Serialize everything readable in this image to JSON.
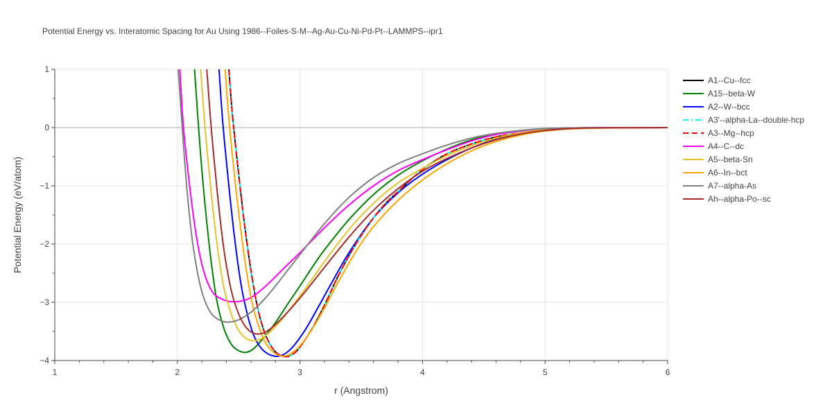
{
  "chart_data": {
    "type": "line",
    "title": "Potential Energy vs. Interatomic Spacing for Au Using 1986--Foiles-S-M--Ag-Au-Cu-Ni-Pd-Pt--LAMMPS--ipr1",
    "xlabel": "r (Angstrom)",
    "ylabel": "Potential Energy (eV/atom)",
    "xlim": [
      1,
      6
    ],
    "ylim": [
      -4,
      1
    ],
    "x_ticks": [
      "1",
      "2",
      "3",
      "4",
      "5",
      "6"
    ],
    "y_ticks": [
      "1",
      "0",
      "−1",
      "−2",
      "−3",
      "−4"
    ],
    "grid": true,
    "legend_position": "right",
    "series": [
      {
        "name": "A1--Cu--fcc",
        "color": "#000000",
        "dash": "solid",
        "points": [
          [
            2.4,
            1.6
          ],
          [
            2.42,
            1.0
          ],
          [
            2.45,
            0.2
          ],
          [
            2.5,
            -0.8
          ],
          [
            2.55,
            -1.7
          ],
          [
            2.6,
            -2.45
          ],
          [
            2.65,
            -3.05
          ],
          [
            2.7,
            -3.45
          ],
          [
            2.75,
            -3.7
          ],
          [
            2.8,
            -3.85
          ],
          [
            2.85,
            -3.92
          ],
          [
            2.9,
            -3.93
          ],
          [
            2.95,
            -3.88
          ],
          [
            3.0,
            -3.77
          ],
          [
            3.1,
            -3.45
          ],
          [
            3.2,
            -3.05
          ],
          [
            3.3,
            -2.6
          ],
          [
            3.4,
            -2.2
          ],
          [
            3.5,
            -1.85
          ],
          [
            3.6,
            -1.55
          ],
          [
            3.7,
            -1.3
          ],
          [
            3.8,
            -1.1
          ],
          [
            4.0,
            -0.72
          ],
          [
            4.2,
            -0.45
          ],
          [
            4.4,
            -0.28
          ],
          [
            4.6,
            -0.16
          ],
          [
            4.8,
            -0.09
          ],
          [
            5.0,
            -0.05
          ],
          [
            5.2,
            -0.02
          ],
          [
            5.5,
            -0.005
          ],
          [
            6.0,
            0
          ]
        ]
      },
      {
        "name": "A15--beta-W",
        "color": "#008000",
        "dash": "solid",
        "points": [
          [
            2.12,
            1.6
          ],
          [
            2.14,
            1.0
          ],
          [
            2.18,
            -0.2
          ],
          [
            2.22,
            -1.2
          ],
          [
            2.27,
            -2.2
          ],
          [
            2.32,
            -2.95
          ],
          [
            2.38,
            -3.45
          ],
          [
            2.44,
            -3.72
          ],
          [
            2.5,
            -3.83
          ],
          [
            2.56,
            -3.86
          ],
          [
            2.62,
            -3.8
          ],
          [
            2.7,
            -3.62
          ],
          [
            2.8,
            -3.35
          ],
          [
            2.9,
            -3.03
          ],
          [
            3.0,
            -2.72
          ],
          [
            3.1,
            -2.4
          ],
          [
            3.2,
            -2.1
          ],
          [
            3.4,
            -1.58
          ],
          [
            3.6,
            -1.15
          ],
          [
            3.8,
            -0.82
          ],
          [
            4.0,
            -0.57
          ],
          [
            4.2,
            -0.37
          ],
          [
            4.4,
            -0.21
          ],
          [
            4.6,
            -0.11
          ],
          [
            4.8,
            -0.05
          ],
          [
            5.0,
            -0.02
          ],
          [
            5.3,
            -0.005
          ],
          [
            6.0,
            0
          ]
        ]
      },
      {
        "name": "A2--W--bcc",
        "color": "#0000ff",
        "dash": "solid",
        "points": [
          [
            2.32,
            1.6
          ],
          [
            2.34,
            1.0
          ],
          [
            2.37,
            0.1
          ],
          [
            2.42,
            -1.0
          ],
          [
            2.47,
            -1.95
          ],
          [
            2.52,
            -2.7
          ],
          [
            2.57,
            -3.2
          ],
          [
            2.62,
            -3.55
          ],
          [
            2.67,
            -3.75
          ],
          [
            2.72,
            -3.86
          ],
          [
            2.78,
            -3.92
          ],
          [
            2.84,
            -3.92
          ],
          [
            2.9,
            -3.85
          ],
          [
            2.96,
            -3.72
          ],
          [
            3.05,
            -3.45
          ],
          [
            3.15,
            -3.08
          ],
          [
            3.25,
            -2.7
          ],
          [
            3.4,
            -2.15
          ],
          [
            3.6,
            -1.55
          ],
          [
            3.8,
            -1.12
          ],
          [
            4.0,
            -0.8
          ],
          [
            4.2,
            -0.55
          ],
          [
            4.4,
            -0.35
          ],
          [
            4.6,
            -0.2
          ],
          [
            4.8,
            -0.1
          ],
          [
            5.0,
            -0.05
          ],
          [
            5.3,
            -0.01
          ],
          [
            6.0,
            0
          ]
        ]
      },
      {
        "name": "A3'--alpha-La--double-hcp",
        "color": "#00ffff",
        "dash": "dashdot",
        "points": [
          [
            2.4,
            1.6
          ],
          [
            2.42,
            1.0
          ],
          [
            2.45,
            0.2
          ],
          [
            2.5,
            -0.8
          ],
          [
            2.55,
            -1.7
          ],
          [
            2.6,
            -2.45
          ],
          [
            2.65,
            -3.05
          ],
          [
            2.7,
            -3.45
          ],
          [
            2.75,
            -3.7
          ],
          [
            2.8,
            -3.85
          ],
          [
            2.85,
            -3.92
          ],
          [
            2.9,
            -3.93
          ],
          [
            2.95,
            -3.88
          ],
          [
            3.0,
            -3.77
          ],
          [
            3.1,
            -3.45
          ],
          [
            3.2,
            -3.05
          ],
          [
            3.3,
            -2.6
          ],
          [
            3.4,
            -2.2
          ],
          [
            3.5,
            -1.85
          ],
          [
            3.6,
            -1.55
          ],
          [
            3.7,
            -1.3
          ],
          [
            3.8,
            -1.1
          ],
          [
            4.0,
            -0.72
          ],
          [
            4.2,
            -0.45
          ],
          [
            4.4,
            -0.28
          ],
          [
            4.6,
            -0.16
          ],
          [
            4.8,
            -0.09
          ],
          [
            5.0,
            -0.05
          ],
          [
            5.2,
            -0.02
          ],
          [
            5.5,
            -0.005
          ],
          [
            6.0,
            0
          ]
        ]
      },
      {
        "name": "A3--Mg--hcp",
        "color": "#ff0000",
        "dash": "dash",
        "points": [
          [
            2.4,
            1.6
          ],
          [
            2.42,
            1.0
          ],
          [
            2.45,
            0.2
          ],
          [
            2.5,
            -0.8
          ],
          [
            2.55,
            -1.7
          ],
          [
            2.6,
            -2.45
          ],
          [
            2.65,
            -3.05
          ],
          [
            2.7,
            -3.45
          ],
          [
            2.75,
            -3.7
          ],
          [
            2.8,
            -3.85
          ],
          [
            2.85,
            -3.92
          ],
          [
            2.9,
            -3.93
          ],
          [
            2.95,
            -3.88
          ],
          [
            3.0,
            -3.77
          ],
          [
            3.1,
            -3.45
          ],
          [
            3.2,
            -3.05
          ],
          [
            3.3,
            -2.6
          ],
          [
            3.4,
            -2.2
          ],
          [
            3.5,
            -1.85
          ],
          [
            3.6,
            -1.55
          ],
          [
            3.7,
            -1.3
          ],
          [
            3.8,
            -1.1
          ],
          [
            4.0,
            -0.72
          ],
          [
            4.2,
            -0.45
          ],
          [
            4.4,
            -0.28
          ],
          [
            4.6,
            -0.16
          ],
          [
            4.8,
            -0.09
          ],
          [
            5.0,
            -0.05
          ],
          [
            5.2,
            -0.02
          ],
          [
            5.5,
            -0.005
          ],
          [
            6.0,
            0
          ]
        ]
      },
      {
        "name": "A4--C--dc",
        "color": "#ff00ff",
        "dash": "solid",
        "points": [
          [
            2.0,
            1.6
          ],
          [
            2.02,
            1.0
          ],
          [
            2.05,
            0.0
          ],
          [
            2.1,
            -1.0
          ],
          [
            2.15,
            -1.8
          ],
          [
            2.2,
            -2.35
          ],
          [
            2.25,
            -2.68
          ],
          [
            2.3,
            -2.86
          ],
          [
            2.38,
            -2.96
          ],
          [
            2.45,
            -2.99
          ],
          [
            2.52,
            -2.98
          ],
          [
            2.6,
            -2.92
          ],
          [
            2.7,
            -2.76
          ],
          [
            2.8,
            -2.56
          ],
          [
            2.9,
            -2.35
          ],
          [
            3.0,
            -2.15
          ],
          [
            3.2,
            -1.72
          ],
          [
            3.4,
            -1.33
          ],
          [
            3.6,
            -1.0
          ],
          [
            3.8,
            -0.74
          ],
          [
            4.0,
            -0.55
          ],
          [
            4.2,
            -0.38
          ],
          [
            4.4,
            -0.23
          ],
          [
            4.6,
            -0.12
          ],
          [
            4.8,
            -0.06
          ],
          [
            5.0,
            -0.02
          ],
          [
            5.3,
            -0.005
          ],
          [
            6.0,
            0
          ]
        ]
      },
      {
        "name": "A5--beta-Sn",
        "color": "#e6c229",
        "dash": "solid",
        "points": [
          [
            2.17,
            1.6
          ],
          [
            2.19,
            1.0
          ],
          [
            2.23,
            -0.1
          ],
          [
            2.28,
            -1.2
          ],
          [
            2.33,
            -2.1
          ],
          [
            2.38,
            -2.75
          ],
          [
            2.44,
            -3.2
          ],
          [
            2.5,
            -3.48
          ],
          [
            2.56,
            -3.62
          ],
          [
            2.62,
            -3.66
          ],
          [
            2.68,
            -3.63
          ],
          [
            2.75,
            -3.52
          ],
          [
            2.85,
            -3.3
          ],
          [
            2.95,
            -3.03
          ],
          [
            3.05,
            -2.75
          ],
          [
            3.2,
            -2.3
          ],
          [
            3.4,
            -1.75
          ],
          [
            3.6,
            -1.3
          ],
          [
            3.8,
            -0.95
          ],
          [
            4.0,
            -0.7
          ],
          [
            4.2,
            -0.48
          ],
          [
            4.4,
            -0.31
          ],
          [
            4.6,
            -0.18
          ],
          [
            4.8,
            -0.09
          ],
          [
            5.0,
            -0.04
          ],
          [
            5.3,
            -0.01
          ],
          [
            6.0,
            0
          ]
        ]
      },
      {
        "name": "A6--In--bct",
        "color": "#ffa500",
        "dash": "solid",
        "points": [
          [
            2.37,
            1.6
          ],
          [
            2.39,
            1.0
          ],
          [
            2.42,
            0.15
          ],
          [
            2.47,
            -0.9
          ],
          [
            2.52,
            -1.8
          ],
          [
            2.57,
            -2.55
          ],
          [
            2.62,
            -3.1
          ],
          [
            2.67,
            -3.45
          ],
          [
            2.72,
            -3.7
          ],
          [
            2.78,
            -3.85
          ],
          [
            2.84,
            -3.92
          ],
          [
            2.9,
            -3.91
          ],
          [
            2.96,
            -3.83
          ],
          [
            3.02,
            -3.7
          ],
          [
            3.1,
            -3.46
          ],
          [
            3.2,
            -3.1
          ],
          [
            3.3,
            -2.7
          ],
          [
            3.45,
            -2.15
          ],
          [
            3.6,
            -1.7
          ],
          [
            3.8,
            -1.25
          ],
          [
            4.0,
            -0.9
          ],
          [
            4.2,
            -0.62
          ],
          [
            4.4,
            -0.4
          ],
          [
            4.6,
            -0.24
          ],
          [
            4.8,
            -0.13
          ],
          [
            5.0,
            -0.06
          ],
          [
            5.3,
            -0.015
          ],
          [
            6.0,
            0
          ]
        ]
      },
      {
        "name": "A7--alpha-As",
        "color": "#808080",
        "dash": "solid",
        "points": [
          [
            2.0,
            1.2
          ],
          [
            2.02,
            0.6
          ],
          [
            2.05,
            -0.3
          ],
          [
            2.08,
            -1.1
          ],
          [
            2.12,
            -1.9
          ],
          [
            2.17,
            -2.55
          ],
          [
            2.22,
            -2.95
          ],
          [
            2.28,
            -3.2
          ],
          [
            2.35,
            -3.31
          ],
          [
            2.42,
            -3.34
          ],
          [
            2.5,
            -3.3
          ],
          [
            2.6,
            -3.17
          ],
          [
            2.7,
            -2.97
          ],
          [
            2.8,
            -2.72
          ],
          [
            2.9,
            -2.45
          ],
          [
            3.0,
            -2.18
          ],
          [
            3.2,
            -1.65
          ],
          [
            3.4,
            -1.2
          ],
          [
            3.6,
            -0.86
          ],
          [
            3.8,
            -0.62
          ],
          [
            4.0,
            -0.45
          ],
          [
            4.2,
            -0.3
          ],
          [
            4.4,
            -0.18
          ],
          [
            4.6,
            -0.1
          ],
          [
            4.8,
            -0.05
          ],
          [
            5.0,
            -0.02
          ],
          [
            5.3,
            -0.005
          ],
          [
            6.0,
            0
          ]
        ]
      },
      {
        "name": "Ah--alpha-Po--sc",
        "color": "#a52a2a",
        "dash": "solid",
        "points": [
          [
            2.22,
            1.6
          ],
          [
            2.24,
            1.0
          ],
          [
            2.28,
            -0.1
          ],
          [
            2.33,
            -1.2
          ],
          [
            2.38,
            -2.1
          ],
          [
            2.44,
            -2.8
          ],
          [
            2.5,
            -3.2
          ],
          [
            2.56,
            -3.43
          ],
          [
            2.62,
            -3.53
          ],
          [
            2.68,
            -3.54
          ],
          [
            2.75,
            -3.47
          ],
          [
            2.85,
            -3.28
          ],
          [
            2.95,
            -3.05
          ],
          [
            3.05,
            -2.8
          ],
          [
            3.2,
            -2.4
          ],
          [
            3.4,
            -1.88
          ],
          [
            3.6,
            -1.42
          ],
          [
            3.8,
            -1.05
          ],
          [
            4.0,
            -0.75
          ],
          [
            4.2,
            -0.53
          ],
          [
            4.4,
            -0.35
          ],
          [
            4.6,
            -0.21
          ],
          [
            4.8,
            -0.11
          ],
          [
            5.0,
            -0.05
          ],
          [
            5.3,
            -0.01
          ],
          [
            6.0,
            0
          ]
        ]
      }
    ]
  }
}
